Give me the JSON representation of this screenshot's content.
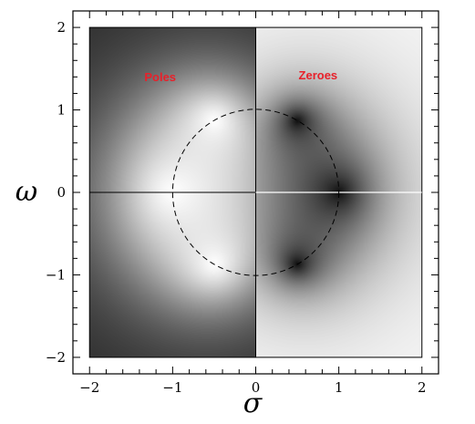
{
  "plot": {
    "x_axis_symbol": "σ",
    "y_axis_symbol": "ω",
    "x_range": [
      -2.2,
      2.2
    ],
    "y_range": [
      -2.2,
      2.2
    ],
    "image_extent": [
      -2,
      2
    ],
    "x_ticks": [
      {
        "value": -2,
        "label": "−2"
      },
      {
        "value": -1,
        "label": "−1"
      },
      {
        "value": 0,
        "label": "0"
      },
      {
        "value": 1,
        "label": "1"
      },
      {
        "value": 2,
        "label": "2"
      }
    ],
    "y_ticks": [
      {
        "value": 2,
        "label": "2"
      },
      {
        "value": 1,
        "label": "1"
      },
      {
        "value": 0,
        "label": "0"
      },
      {
        "value": -1,
        "label": "−1"
      },
      {
        "value": -2,
        "label": "−2"
      }
    ],
    "minor_tick_step": 0.2,
    "unit_circle": {
      "radius": 1,
      "style": "dashed"
    }
  },
  "regions": {
    "left": {
      "label": "Poles",
      "label_color": "#e8202a"
    },
    "right": {
      "label": "Zeroes",
      "label_color": "#e8202a"
    }
  },
  "poles": [
    {
      "sigma": -0.5,
      "omega": 0.866
    },
    {
      "sigma": -1.0,
      "omega": 0.0
    },
    {
      "sigma": -0.5,
      "omega": -0.866
    }
  ],
  "zeroes": [
    {
      "sigma": 0.5,
      "omega": 0.866
    },
    {
      "sigma": 1.0,
      "omega": 0.0
    },
    {
      "sigma": 0.5,
      "omega": -0.866
    }
  ]
}
